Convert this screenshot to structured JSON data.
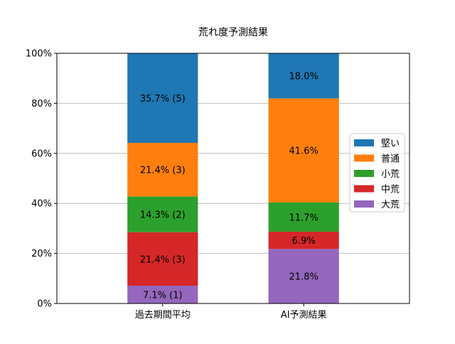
{
  "chart_data": {
    "type": "bar",
    "stacked": true,
    "title": "荒れ度予測結果",
    "xlabel": "",
    "ylabel": "",
    "ylim": [
      0,
      100
    ],
    "yticks": [
      "0%",
      "20%",
      "40%",
      "60%",
      "80%",
      "100%"
    ],
    "ytick_values": [
      0,
      20,
      40,
      60,
      80,
      100
    ],
    "grid": "y",
    "legend_position": "center-right",
    "categories": [
      "過去期間平均",
      "AI予測結果"
    ],
    "series": [
      {
        "name": "大荒",
        "color": "#9467bd",
        "values": [
          7.1,
          21.8
        ],
        "labels": [
          "7.1% (1)",
          "21.8%"
        ]
      },
      {
        "name": "中荒",
        "color": "#d62728",
        "values": [
          21.4,
          6.9
        ],
        "labels": [
          "21.4% (3)",
          "6.9%"
        ]
      },
      {
        "name": "小荒",
        "color": "#2ca02c",
        "values": [
          14.3,
          11.7
        ],
        "labels": [
          "14.3% (2)",
          "11.7%"
        ]
      },
      {
        "name": "普通",
        "color": "#ff7f0e",
        "values": [
          21.4,
          41.6
        ],
        "labels": [
          "21.4% (3)",
          "41.6%"
        ]
      },
      {
        "name": "堅い",
        "color": "#1f77b4",
        "values": [
          35.7,
          18.0
        ],
        "labels": [
          "35.7% (5)",
          "18.0%"
        ]
      }
    ],
    "legend_order": [
      "堅い",
      "普通",
      "小荒",
      "中荒",
      "大荒"
    ]
  }
}
